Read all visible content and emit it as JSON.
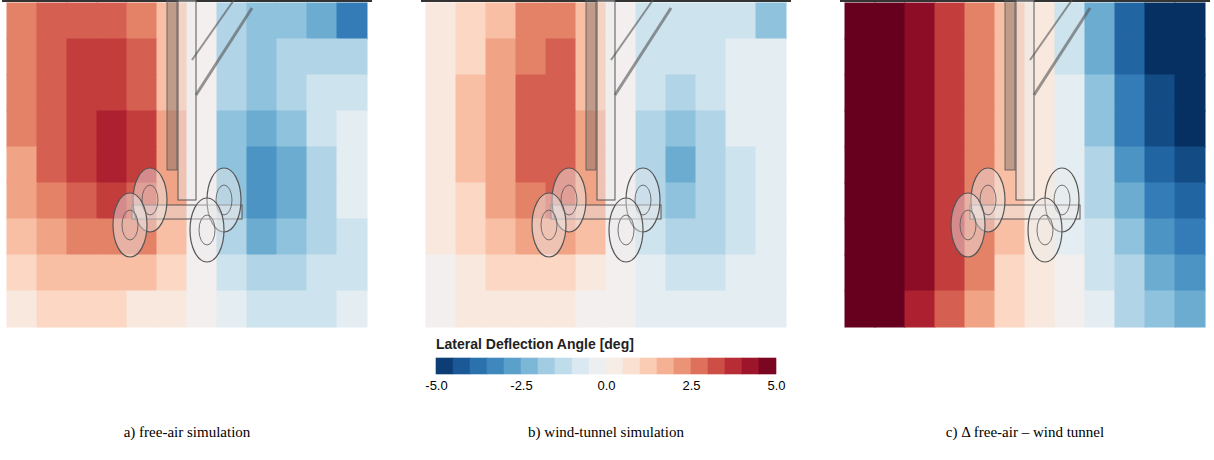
{
  "chart_data": [
    {
      "type": "heatmap",
      "title": "a) free-air simulation",
      "tick_labels": false,
      "cells": [
        [
          2.5,
          3,
          3,
          3,
          2.5,
          1.5,
          0,
          -1.5,
          -2,
          -2,
          -2.5,
          -3.5
        ],
        [
          2.5,
          3,
          3.5,
          3.5,
          3,
          1.5,
          0,
          -1.5,
          -2,
          -1.5,
          -1.5,
          -1.5
        ],
        [
          2.5,
          3,
          3.5,
          3.5,
          3,
          1.5,
          0,
          -1.5,
          -2,
          -1.5,
          -1,
          -1
        ],
        [
          2.5,
          3,
          3.5,
          4,
          3.5,
          2,
          0,
          -2,
          -2.5,
          -2,
          -1,
          -0.5
        ],
        [
          2,
          3,
          3.5,
          4,
          3.5,
          2,
          0,
          -2,
          -3,
          -2.5,
          -1.5,
          -0.5
        ],
        [
          2,
          2.5,
          3,
          3.5,
          3,
          2,
          0,
          -2,
          -3,
          -2.5,
          -1.5,
          -0.5
        ],
        [
          1.5,
          2,
          2.5,
          2.5,
          2.5,
          1.5,
          0,
          -1.5,
          -2.5,
          -2,
          -1.5,
          -1
        ],
        [
          1,
          1.5,
          1.5,
          1.5,
          1.5,
          1,
          0,
          -1,
          -1.5,
          -1.5,
          -1,
          -1
        ],
        [
          0.5,
          1,
          1,
          1,
          0.5,
          0.5,
          0,
          -0.5,
          -1,
          -1,
          -1,
          -0.5
        ]
      ]
    },
    {
      "type": "heatmap",
      "title": "b) wind-tunnel simulation",
      "tick_labels": false,
      "cells": [
        [
          0.5,
          1,
          1.5,
          2.5,
          2.5,
          1.5,
          0,
          -1,
          -1,
          -1,
          -1,
          -2
        ],
        [
          0.5,
          1,
          2,
          2.5,
          3,
          1.5,
          0,
          -1,
          -1,
          -1,
          -0.5,
          -0.5
        ],
        [
          0.5,
          1.5,
          2,
          3,
          3,
          1.5,
          0,
          -1,
          -1.5,
          -1,
          -0.5,
          -0.5
        ],
        [
          0.5,
          1.5,
          2,
          3,
          3,
          2,
          0,
          -1.5,
          -2,
          -1.5,
          -0.5,
          -0.5
        ],
        [
          0.5,
          1.5,
          2,
          3,
          3,
          2,
          0,
          -1.5,
          -2.5,
          -1.5,
          -1,
          -0.5
        ],
        [
          0.5,
          1,
          2,
          2.5,
          3,
          2,
          0,
          -1.5,
          -2,
          -1.5,
          -1,
          -0.5
        ],
        [
          0.5,
          1,
          1.5,
          2,
          2,
          1.5,
          0,
          -1,
          -1.5,
          -1.5,
          -1,
          -0.5
        ],
        [
          0,
          0.5,
          1,
          1,
          1,
          0.5,
          0,
          -0.5,
          -1,
          -1,
          -0.5,
          -0.5
        ],
        [
          0,
          0.5,
          0.5,
          0.5,
          0.5,
          0,
          0,
          -0.5,
          -0.5,
          -0.5,
          -0.5,
          -0.5
        ]
      ],
      "colorbar": {
        "label": "Lateral Deflection Angle [deg]",
        "range": [
          -5,
          5
        ],
        "ticks": [
          {
            "value": -5,
            "label": "-5.0"
          },
          {
            "value": -2.5,
            "label": "-2.5"
          },
          {
            "value": 0,
            "label": "0.0"
          },
          {
            "value": 2.5,
            "label": "2.5"
          },
          {
            "value": 5,
            "label": "5.0"
          }
        ]
      }
    },
    {
      "type": "heatmap",
      "title": "c) Δ free-air – wind tunnel",
      "tick_labels": false,
      "cells": [
        [
          5,
          5,
          4.5,
          3.5,
          2.5,
          1.5,
          0.5,
          -1,
          -2.5,
          -4,
          -5,
          -5
        ],
        [
          5,
          5,
          4.5,
          3.5,
          2.5,
          1.5,
          0.5,
          -1,
          -2.5,
          -4,
          -5,
          -5
        ],
        [
          5,
          5,
          4.5,
          3.5,
          2.5,
          1.5,
          0.5,
          -0.5,
          -2,
          -3.5,
          -4.5,
          -5
        ],
        [
          5,
          5,
          4.5,
          3.5,
          2.5,
          1.5,
          0.5,
          -0.5,
          -2,
          -3.5,
          -4.5,
          -5
        ],
        [
          5,
          5,
          4.5,
          3.5,
          2.5,
          1.5,
          0.5,
          -0.5,
          -1.5,
          -3,
          -4,
          -4.5
        ],
        [
          5,
          5,
          4.5,
          3.5,
          2.5,
          1.5,
          0.5,
          -0.5,
          -1.5,
          -2.5,
          -3.5,
          -4
        ],
        [
          5,
          5,
          4.5,
          3.5,
          2.5,
          1.5,
          0.5,
          -0.5,
          -1,
          -2,
          -3,
          -3.5
        ],
        [
          5,
          5,
          4.5,
          3.5,
          2.5,
          1,
          0.5,
          0,
          -1,
          -1.5,
          -2.5,
          -3
        ],
        [
          5,
          5,
          4,
          3,
          2,
          1,
          0.5,
          0,
          -0.5,
          -1.5,
          -2,
          -2.5
        ]
      ]
    }
  ]
}
